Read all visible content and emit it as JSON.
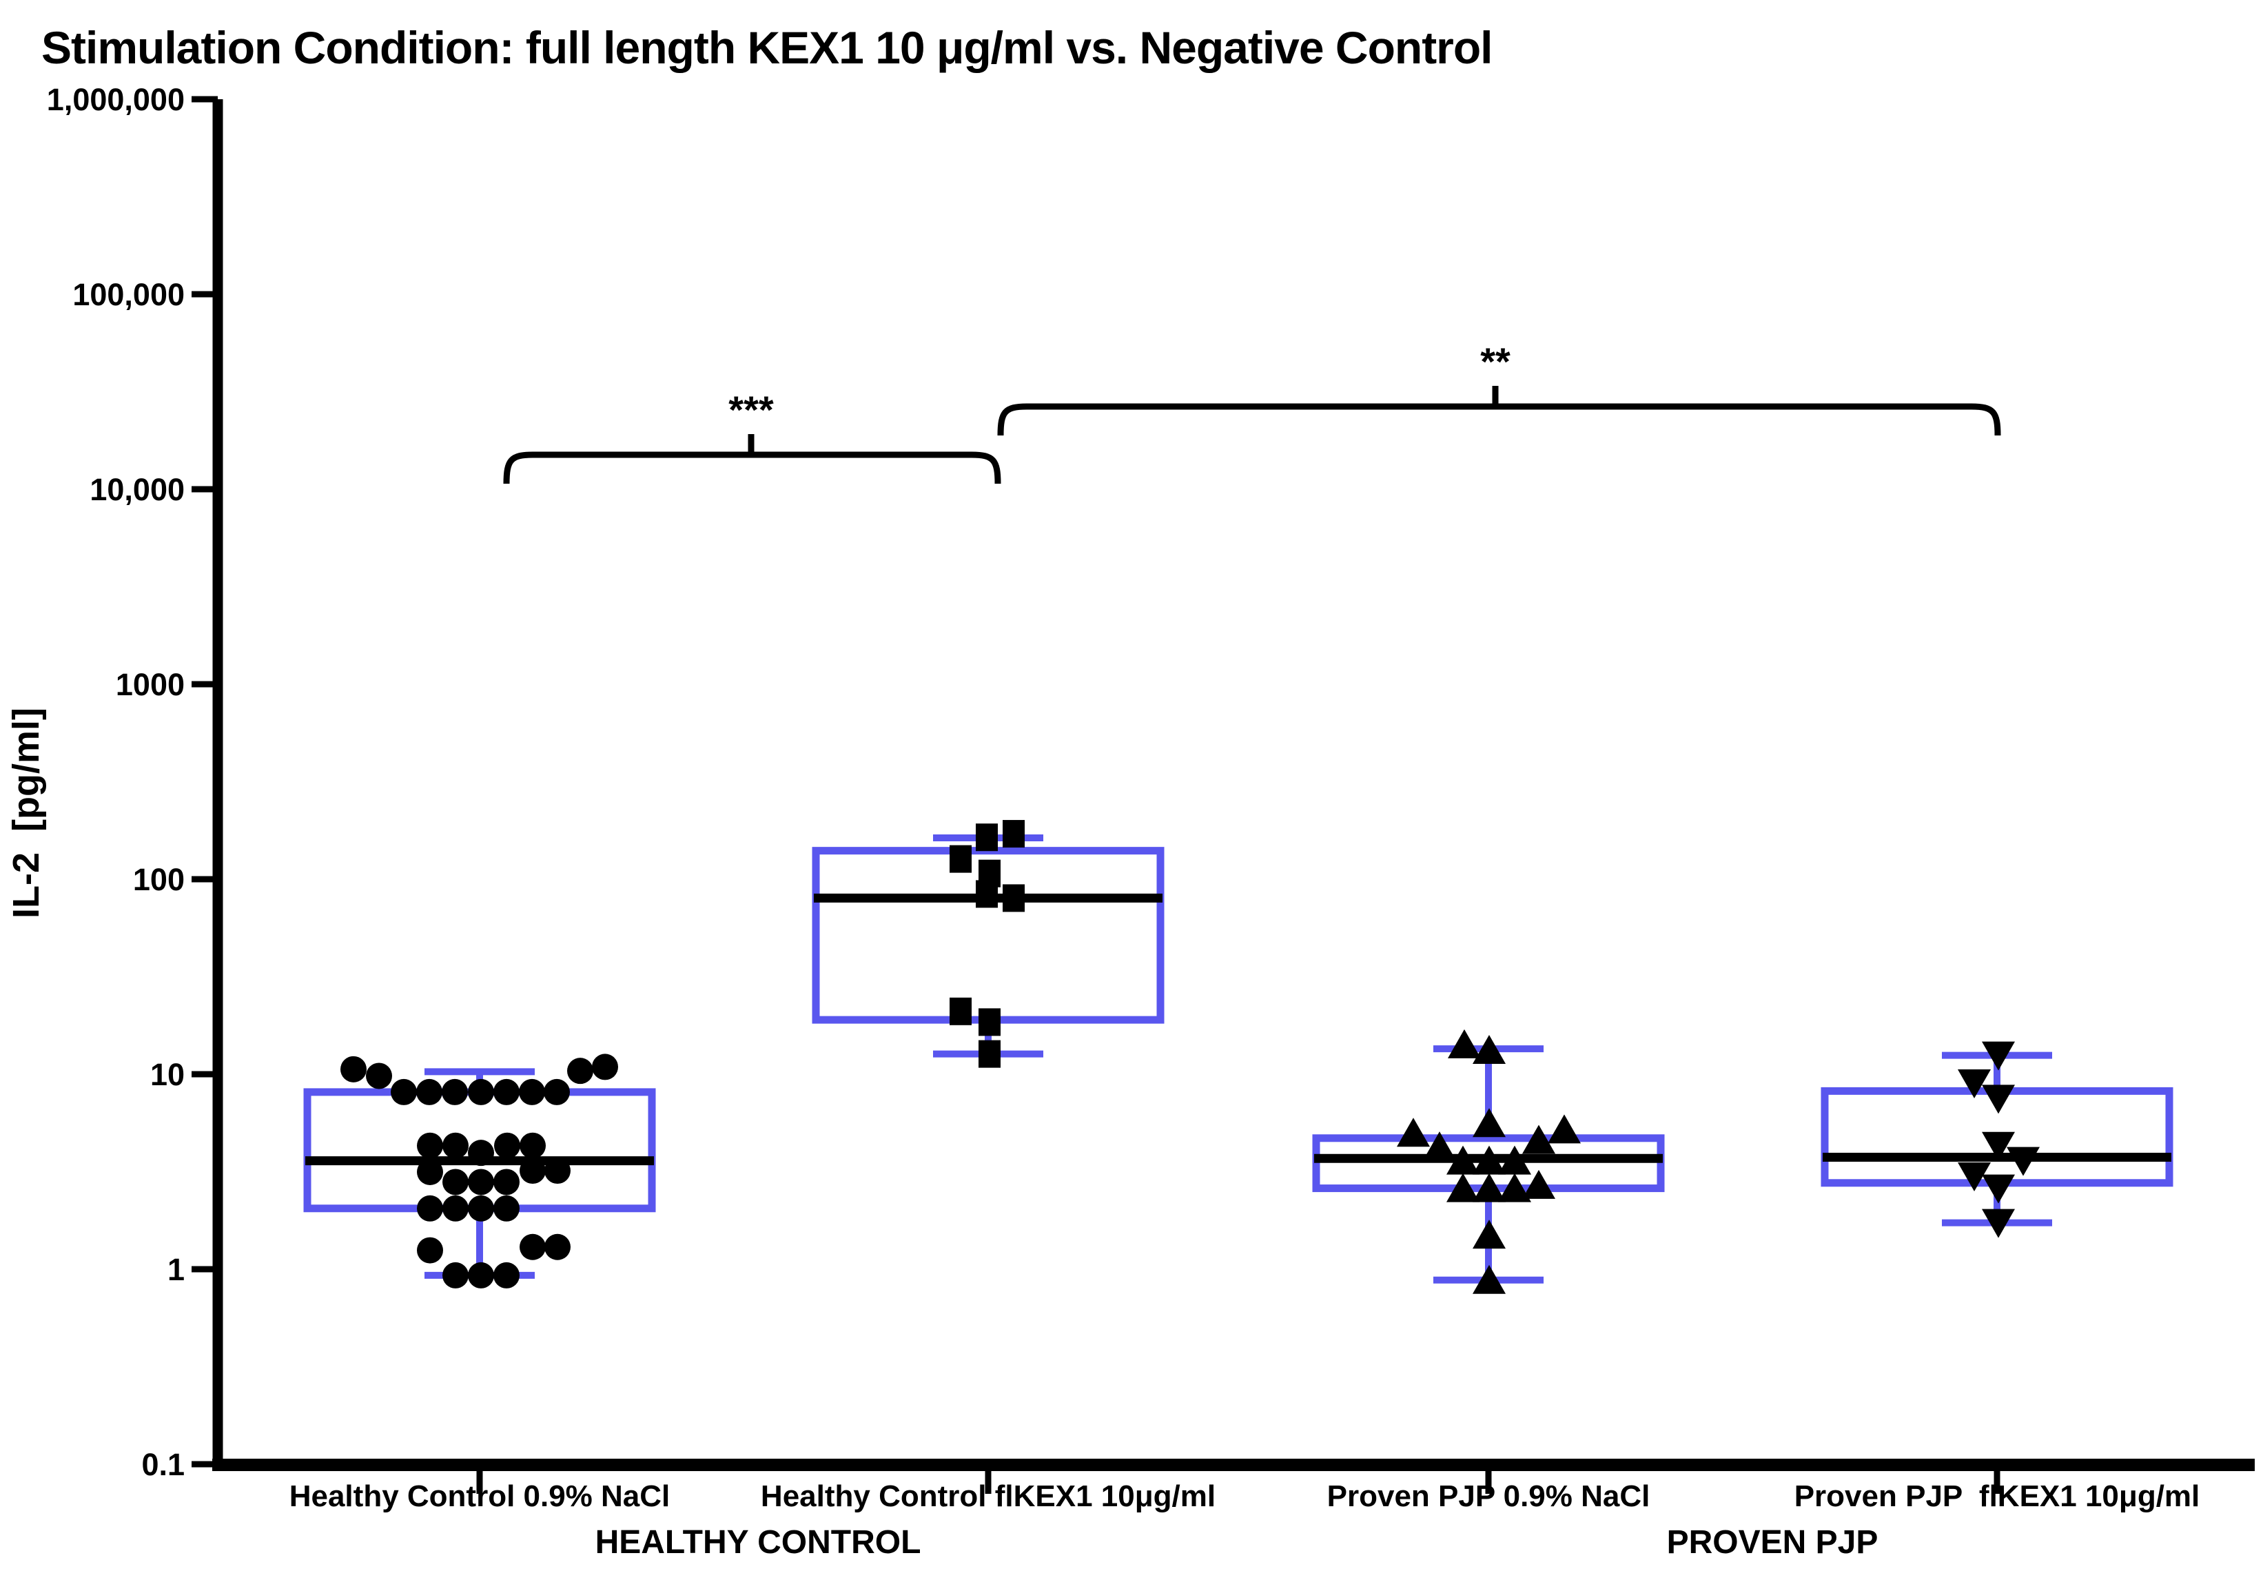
{
  "title": "Stimulation Condition: full length KEX1 10 μg/ml vs. Negative Control",
  "y_axis": {
    "label": "IL-2  [pg/ml]",
    "scale": "log",
    "min": 0.1,
    "max": 1000000,
    "ticks": [
      {
        "label": "1,000,000",
        "value": 1000000
      },
      {
        "label": "100,000",
        "value": 100000
      },
      {
        "label": "10,000",
        "value": 10000
      },
      {
        "label": "1000",
        "value": 1000
      },
      {
        "label": "100",
        "value": 100
      },
      {
        "label": "10",
        "value": 10
      },
      {
        "label": "1",
        "value": 1
      },
      {
        "label": "0.1",
        "value": 0.1
      }
    ]
  },
  "x_axis": {
    "section_labels": [
      "HEALTHY CONTROL",
      "PROVEN PJP"
    ]
  },
  "chart_data": {
    "type": "box",
    "log_scale": true,
    "title": "Stimulation Condition: full length KEX1 10 μg/ml vs. Negative Control",
    "ylabel": "IL-2 [pg/ml]",
    "ylim": [
      0.1,
      1000000
    ],
    "legend": "none",
    "groups": [
      {
        "label": "Healthy Control 0.9% NaCl",
        "marker": "circle",
        "stats": {
          "min": 0.93,
          "q1": 2.05,
          "median": 3.6,
          "q3": 8.1,
          "max": 10.3
        },
        "points": [
          [
            -183,
            10.6
          ],
          [
            -146,
            9.8
          ],
          [
            -110,
            8.1
          ],
          [
            -73,
            8.1
          ],
          [
            -36,
            8.1
          ],
          [
            2,
            8.1
          ],
          [
            39,
            8.1
          ],
          [
            76,
            8.1
          ],
          [
            112,
            8.1
          ],
          [
            146,
            10.4
          ],
          [
            182,
            10.9
          ],
          [
            -72,
            4.3
          ],
          [
            -35,
            4.3
          ],
          [
            2,
            3.95
          ],
          [
            40,
            4.3
          ],
          [
            77,
            4.3
          ],
          [
            -72,
            3.15
          ],
          [
            77,
            3.2
          ],
          [
            113,
            3.2
          ],
          [
            -35,
            2.8
          ],
          [
            2,
            2.8
          ],
          [
            39,
            2.8
          ],
          [
            -72,
            2.05
          ],
          [
            -35,
            2.05
          ],
          [
            2,
            2.05
          ],
          [
            39,
            2.05
          ],
          [
            -72,
            1.25
          ],
          [
            77,
            1.3
          ],
          [
            113,
            1.3
          ],
          [
            -35,
            0.93
          ],
          [
            2,
            0.93
          ],
          [
            39,
            0.93
          ]
        ]
      },
      {
        "label": "Healthy Control flKEX1 10μg/ml",
        "marker": "square",
        "stats": {
          "min": 12.7,
          "q1": 19,
          "median": 80,
          "q3": 140,
          "max": 163
        },
        "points": [
          [
            -2,
            164
          ],
          [
            37,
            171
          ],
          [
            -40,
            127
          ],
          [
            2,
            107
          ],
          [
            -2,
            84
          ],
          [
            37,
            80
          ],
          [
            -40,
            21
          ],
          [
            2,
            18.5
          ],
          [
            2,
            12.7
          ]
        ]
      },
      {
        "label": "Proven PJP 0.9% NaCl",
        "marker": "triangle-up",
        "stats": {
          "min": 0.88,
          "q1": 2.6,
          "median": 3.7,
          "q3": 4.7,
          "max": 13.5
        },
        "points": [
          [
            -35,
            14.2
          ],
          [
            1,
            13.3
          ],
          [
            1,
            5.6
          ],
          [
            -109,
            5.0
          ],
          [
            110,
            5.2
          ],
          [
            -71,
            4.25
          ],
          [
            73,
            4.6
          ],
          [
            -37,
            3.6
          ],
          [
            1,
            3.6
          ],
          [
            38,
            3.6
          ],
          [
            -37,
            2.6
          ],
          [
            1,
            2.6
          ],
          [
            38,
            2.6
          ],
          [
            73,
            2.7
          ],
          [
            1,
            1.5
          ],
          [
            1,
            0.88
          ]
        ]
      },
      {
        "label": "Proven PJP  flKEX1 10μg/ml",
        "marker": "triangle-down",
        "stats": {
          "min": 1.73,
          "q1": 2.77,
          "median": 3.75,
          "q3": 8.2,
          "max": 12.5
        },
        "points": [
          [
            2,
            12.5
          ],
          [
            -33,
            9.0
          ],
          [
            2,
            7.5
          ],
          [
            2,
            4.3
          ],
          [
            38,
            3.6
          ],
          [
            -33,
            3.0
          ],
          [
            2,
            2.6
          ],
          [
            2,
            1.73
          ]
        ]
      }
    ],
    "significance": [
      {
        "label": "***",
        "between": [
          "Healthy Control 0.9% NaCl",
          "Healthy Control flKEX1 10μg/ml"
        ],
        "x1": 735,
        "x2": 1448,
        "y": 660,
        "tick_x": 1090
      },
      {
        "label": "**",
        "between": [
          "Healthy Control flKEX1 10μg/ml",
          "Proven PJP  flKEX1 10μg/ml"
        ],
        "x1": 1452,
        "x2": 2899,
        "y": 590,
        "tick_x": 2170
      }
    ],
    "layout": {
      "group_centers": [
        696,
        1434,
        2160,
        2898
      ],
      "box_half_width": 250,
      "cap_half_width": 80,
      "y_of_value_1": 1842,
      "pixels_per_decade": 283,
      "y_axis_x": 316,
      "x_axis_y": 2126,
      "plot_top_y": 144,
      "plot_right_x": 3272,
      "x_tick_label_baseline": 2186,
      "section_label_baseline": 2254,
      "section_label_x": [
        1100,
        2572
      ],
      "grid": "off"
    }
  },
  "colors": {
    "box_outline": "#5956ee",
    "median": "#000000",
    "marker": "#000000",
    "axis": "#000000",
    "background": "#ffffff"
  }
}
